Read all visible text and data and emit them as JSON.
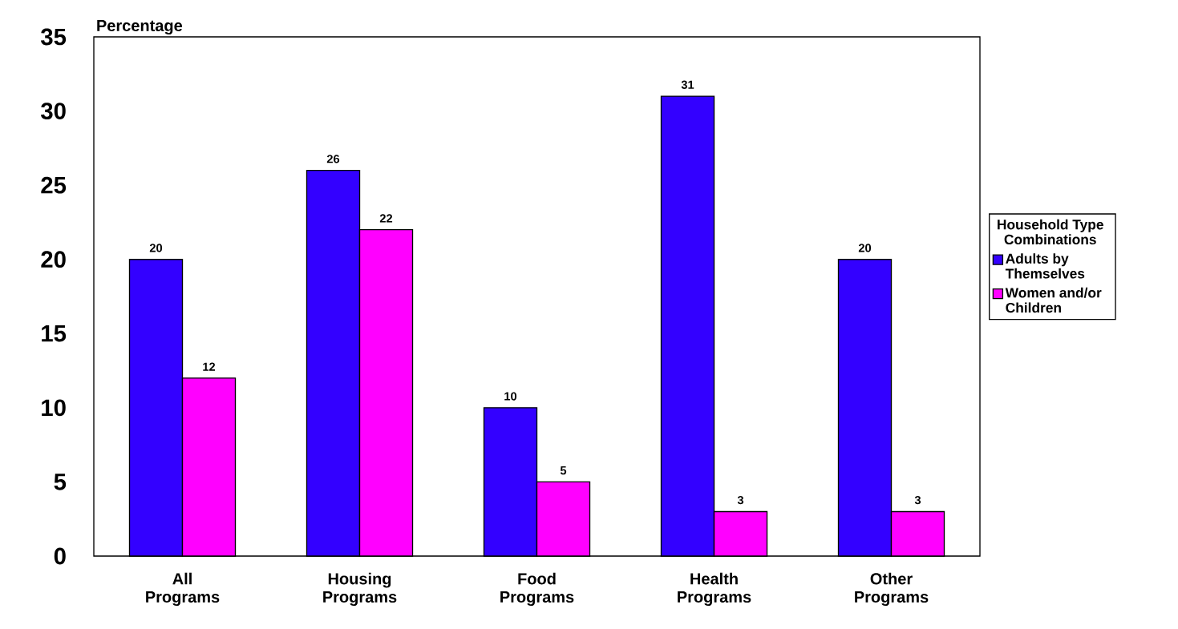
{
  "chart_data": {
    "type": "bar",
    "ylabel": "Percentage",
    "legend_title": "Household Type Combinations",
    "categories": [
      "All Programs",
      "Housing Programs",
      "Food Programs",
      "Health Programs",
      "Other Programs"
    ],
    "series": [
      {
        "name": "Adults by Themselves",
        "color": "#3300ff",
        "values": [
          20,
          26,
          10,
          31,
          20
        ]
      },
      {
        "name": "Women and/or Children",
        "color": "#ff00ff",
        "values": [
          12,
          22,
          5,
          3,
          3
        ]
      }
    ],
    "ylim": [
      0,
      35
    ],
    "yticks": [
      0,
      5,
      10,
      15,
      20,
      25,
      30,
      35
    ],
    "data_labels": true,
    "legend": "right"
  }
}
